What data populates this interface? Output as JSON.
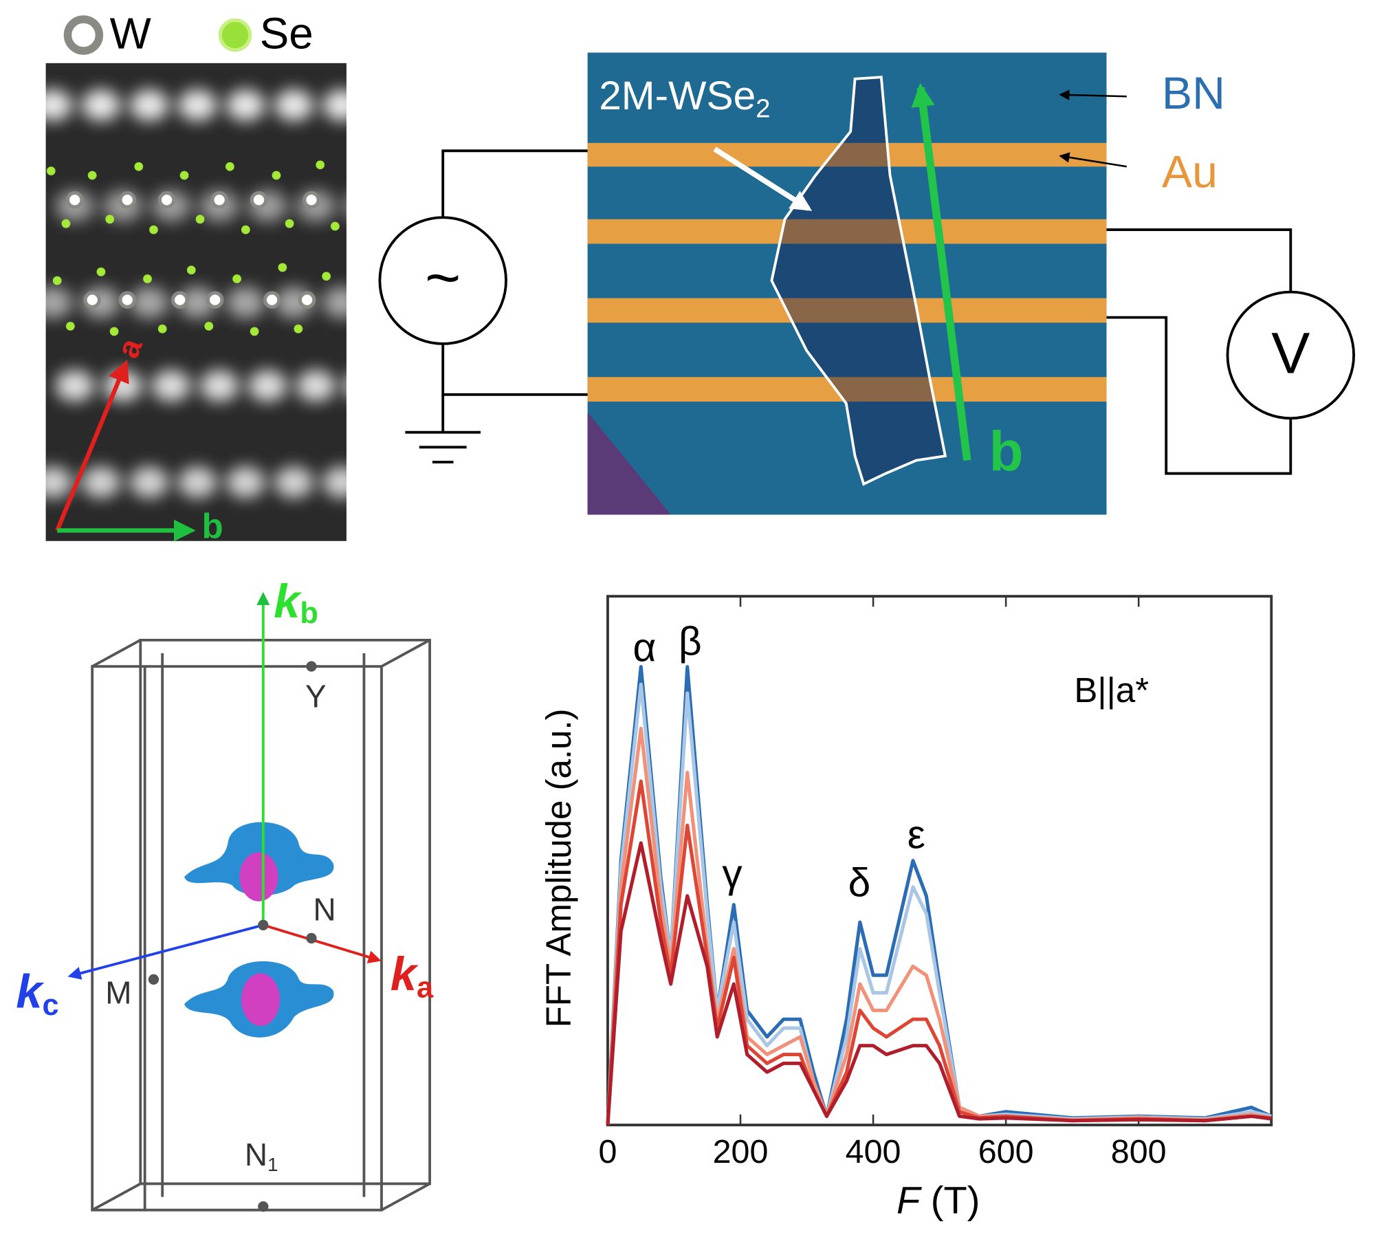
{
  "stem": {
    "legend": [
      "W",
      "Se"
    ],
    "axis_a": "a",
    "axis_b": "b"
  },
  "device": {
    "sample": "2M-WSe",
    "sample_sub": "2",
    "bn": "BN",
    "au": "Au",
    "axis_b": "b",
    "source": "~",
    "meter": "V"
  },
  "brillouin": {
    "k": [
      "k",
      "k",
      "k"
    ],
    "k_sub": [
      "b",
      "c",
      "a"
    ],
    "points": [
      "Y",
      "N",
      "M",
      "N"
    ],
    "n1_sub": "1"
  },
  "chart_data": {
    "type": "line",
    "y_label": "FFT Amplitude (a.u.)",
    "x_label_var": "F",
    "x_label_unit": "(T)",
    "annotation": "B||a*",
    "peak_labels": [
      "α",
      "β",
      "γ",
      "δ",
      "ε"
    ],
    "x": [
      0,
      20,
      50,
      80,
      95,
      120,
      150,
      165,
      190,
      210,
      240,
      265,
      290,
      310,
      330,
      360,
      380,
      400,
      420,
      460,
      480,
      500,
      530,
      560,
      600,
      700,
      800,
      900,
      970,
      1000
    ],
    "series": [
      {
        "name": null,
        "color": "#2b6db5",
        "values": [
          0,
          3.0,
          5.2,
          2.8,
          1.9,
          5.2,
          2.5,
          1.3,
          2.5,
          1.3,
          1.0,
          1.2,
          1.2,
          0.6,
          0.1,
          1.2,
          2.3,
          1.7,
          1.7,
          3.0,
          2.6,
          1.6,
          0.2,
          0.1,
          0.15,
          0.08,
          0.1,
          0.08,
          0.2,
          0.1
        ]
      },
      {
        "name": null,
        "color": "#a9c6e4",
        "values": [
          0,
          2.9,
          5.0,
          2.7,
          1.9,
          4.9,
          2.4,
          1.3,
          2.3,
          1.2,
          0.9,
          1.1,
          1.1,
          0.5,
          0.1,
          1.0,
          2.0,
          1.5,
          1.5,
          2.7,
          2.4,
          1.5,
          0.2,
          0.1,
          0.12,
          0.07,
          0.09,
          0.07,
          0.15,
          0.1
        ]
      },
      {
        "name": null,
        "color": "#f2917a",
        "values": [
          0,
          2.7,
          4.5,
          2.5,
          1.8,
          4.0,
          2.0,
          1.2,
          2.0,
          1.0,
          0.8,
          0.9,
          1.0,
          0.5,
          0.1,
          0.8,
          1.6,
          1.3,
          1.3,
          1.8,
          1.7,
          1.2,
          0.2,
          0.1,
          0.1,
          0.06,
          0.08,
          0.06,
          0.12,
          0.08
        ]
      },
      {
        "name": null,
        "color": "#dd4534",
        "values": [
          0,
          2.5,
          3.9,
          2.3,
          1.7,
          3.4,
          1.9,
          1.1,
          1.9,
          0.9,
          0.7,
          0.8,
          0.8,
          0.4,
          0.1,
          0.6,
          1.3,
          1.1,
          1.0,
          1.2,
          1.2,
          0.9,
          0.15,
          0.08,
          0.1,
          0.05,
          0.07,
          0.05,
          0.1,
          0.08
        ]
      },
      {
        "name": null,
        "color": "#b01e2c",
        "values": [
          0,
          2.2,
          3.2,
          2.1,
          1.6,
          2.6,
          1.8,
          1.0,
          1.6,
          0.8,
          0.6,
          0.7,
          0.7,
          0.4,
          0.1,
          0.5,
          0.9,
          0.9,
          0.8,
          0.9,
          0.9,
          0.7,
          0.1,
          0.07,
          0.08,
          0.05,
          0.06,
          0.05,
          0.1,
          0.07
        ]
      }
    ],
    "xlim": [
      0,
      1000
    ],
    "ylim": [
      0,
      6
    ],
    "xticks": [
      0,
      200,
      400,
      600,
      800
    ]
  }
}
